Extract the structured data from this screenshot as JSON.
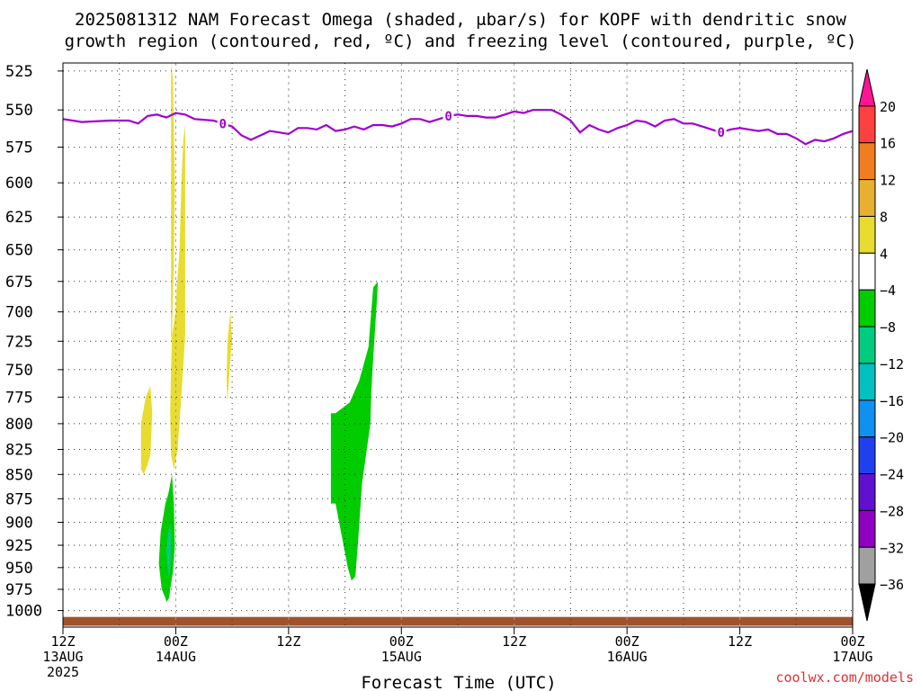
{
  "title_line1": "2025081312 NAM Forecast Omega (shaded, μbar/s) for KOPF with dendritic snow",
  "title_line2": "growth region (contoured, red, ºC) and freezing level (contoured, purple, ºC)",
  "xlabel": "Forecast Time (UTC)",
  "credit": "coolwx.com/models",
  "chart_data": {
    "type": "heatmap",
    "title": "2025081312 NAM Forecast Omega (shaded, μbar/s) for KOPF with dendritic snow growth region (contoured, red, ºC) and freezing level (contoured, purple, ºC)",
    "xlabel": "Forecast Time (UTC)",
    "ylabel": "",
    "x_unit": "hours since 2025-08-13 12Z",
    "xlim": [
      0,
      84
    ],
    "ylim": [
      1020,
      520
    ],
    "y_scale": "log-pressure",
    "grid": true,
    "x_ticks": [
      {
        "x": 0,
        "l1": "12Z",
        "l2": "13AUG",
        "l3": "2025"
      },
      {
        "x": 12,
        "l1": "00Z",
        "l2": "14AUG",
        "l3": ""
      },
      {
        "x": 24,
        "l1": "12Z",
        "l2": "",
        "l3": ""
      },
      {
        "x": 36,
        "l1": "00Z",
        "l2": "15AUG",
        "l3": ""
      },
      {
        "x": 48,
        "l1": "12Z",
        "l2": "",
        "l3": ""
      },
      {
        "x": 60,
        "l1": "00Z",
        "l2": "16AUG",
        "l3": ""
      },
      {
        "x": 72,
        "l1": "12Z",
        "l2": "",
        "l3": ""
      },
      {
        "x": 84,
        "l1": "00Z",
        "l2": "17AUG",
        "l3": ""
      }
    ],
    "y_ticks": [
      525,
      550,
      575,
      600,
      625,
      650,
      675,
      700,
      725,
      750,
      775,
      800,
      825,
      850,
      875,
      900,
      925,
      950,
      975,
      1000
    ],
    "colorbar": {
      "labels": [
        "20",
        "16",
        "12",
        "8",
        "4",
        "−4",
        "−8",
        "−12",
        "−16",
        "−20",
        "−24",
        "−28",
        "−32",
        "−36"
      ],
      "colors_top_to_bottom": [
        "#ff1493",
        "#ff4040",
        "#f07d20",
        "#e8b030",
        "#e8dc30",
        "#ffffff",
        "#00cc00",
        "#00cc80",
        "#00c0c0",
        "#1090f0",
        "#2040f0",
        "#6010d0",
        "#9000c0",
        "#a0a0a0",
        "#000000"
      ]
    },
    "series": [
      {
        "name": "freezing level",
        "color": "#a000d0",
        "label": "0",
        "points": [
          [
            0,
            556
          ],
          [
            2,
            558
          ],
          [
            5,
            557
          ],
          [
            7,
            557
          ],
          [
            8,
            559
          ],
          [
            9,
            554
          ],
          [
            10,
            553
          ],
          [
            11,
            555
          ],
          [
            12,
            552
          ],
          [
            13,
            553
          ],
          [
            14,
            556
          ],
          [
            16,
            557
          ],
          [
            17,
            559
          ],
          [
            18,
            561
          ],
          [
            19,
            567
          ],
          [
            20,
            570
          ],
          [
            21,
            567
          ],
          [
            22,
            564
          ],
          [
            23,
            565
          ],
          [
            24,
            566
          ],
          [
            25,
            562
          ],
          [
            26,
            562
          ],
          [
            27,
            563
          ],
          [
            28,
            560
          ],
          [
            29,
            564
          ],
          [
            30,
            563
          ],
          [
            31,
            561
          ],
          [
            32,
            563
          ],
          [
            33,
            560
          ],
          [
            34,
            560
          ],
          [
            35,
            561
          ],
          [
            36,
            559
          ],
          [
            37,
            556
          ],
          [
            38,
            556
          ],
          [
            39,
            558
          ],
          [
            40,
            556
          ],
          [
            41,
            554
          ],
          [
            42,
            553
          ],
          [
            43,
            554
          ],
          [
            44,
            554
          ],
          [
            45,
            555
          ],
          [
            46,
            555
          ],
          [
            47,
            553
          ],
          [
            48,
            551
          ],
          [
            49,
            552
          ],
          [
            50,
            550
          ],
          [
            52,
            550
          ],
          [
            53,
            553
          ],
          [
            54,
            557
          ],
          [
            55,
            565
          ],
          [
            56,
            560
          ],
          [
            57,
            563
          ],
          [
            58,
            565
          ],
          [
            59,
            562
          ],
          [
            60,
            560
          ],
          [
            61,
            557
          ],
          [
            62,
            558
          ],
          [
            63,
            561
          ],
          [
            64,
            557
          ],
          [
            65,
            556
          ],
          [
            66,
            559
          ],
          [
            67,
            559
          ],
          [
            68,
            561
          ],
          [
            69,
            563
          ],
          [
            70,
            565
          ],
          [
            71,
            563
          ],
          [
            72,
            562
          ],
          [
            73,
            563
          ],
          [
            74,
            564
          ],
          [
            75,
            563
          ],
          [
            76,
            566
          ],
          [
            77,
            566
          ],
          [
            78,
            569
          ],
          [
            79,
            573
          ],
          [
            80,
            570
          ],
          [
            81,
            571
          ],
          [
            82,
            569
          ],
          [
            83,
            566
          ],
          [
            84,
            564
          ]
        ],
        "labels_at_x": [
          17,
          41,
          70
        ]
      }
    ],
    "omega_regions": [
      {
        "bin": "4 to 8",
        "color": "#e8dc30",
        "t": [
          11.5,
          12.0,
          12.1,
          12.4,
          12.6,
          12.8,
          13.0,
          13.0,
          12.7,
          12.4,
          12.2,
          11.8,
          11.5,
          11.4,
          11.5,
          11.8,
          11.9,
          11.7,
          11.5
        ],
        "p": [
          725,
          700,
          680,
          650,
          600,
          570,
          560,
          720,
          760,
          800,
          825,
          845,
          830,
          790,
          750,
          660,
          600,
          530,
          520
        ]
      },
      {
        "bin": "4 to 8",
        "color": "#e8dc30",
        "t": [
          8.3,
          8.8,
          9.3,
          9.5,
          9.3,
          9.0,
          8.6,
          8.3,
          8.3
        ],
        "p": [
          800,
          775,
          765,
          790,
          830,
          840,
          850,
          845,
          800
        ]
      },
      {
        "bin": "4 to 8",
        "color": "#e8dc30",
        "t": [
          17.5,
          17.8,
          18.0,
          17.8,
          17.5,
          17.4,
          17.5
        ],
        "p": [
          780,
          740,
          725,
          700,
          725,
          760,
          780
        ]
      },
      {
        "bin": "-4 to -8",
        "color": "#00cc00",
        "t": [
          10.5,
          10.2,
          10.4,
          10.9,
          11.2,
          11.4,
          11.6,
          11.8,
          11.9,
          11.7,
          11.4,
          11.3,
          11.0,
          10.9,
          10.5
        ],
        "p": [
          975,
          945,
          910,
          880,
          870,
          860,
          850,
          880,
          925,
          955,
          975,
          985,
          990,
          985,
          975
        ]
      },
      {
        "bin": "-4 to -8",
        "color": "#00cc00",
        "t": [
          28.5,
          29.0,
          30.5,
          31.5,
          32.5,
          33.0,
          33.5,
          33.4,
          33.0,
          32.8,
          32.7,
          31.8,
          31.4,
          31.1,
          30.7,
          30.3,
          29.0,
          28.5,
          28.5
        ],
        "p": [
          790,
          790,
          780,
          760,
          730,
          680,
          675,
          690,
          740,
          770,
          800,
          860,
          920,
          960,
          965,
          950,
          880,
          880,
          790
        ]
      },
      {
        "bin": "-8 to -12",
        "color": "#00cc80",
        "t": [
          11.0,
          11.2,
          11.4,
          11.5,
          11.4,
          11.2,
          11.0
        ],
        "p": [
          930,
          910,
          900,
          925,
          955,
          960,
          930
        ]
      }
    ],
    "terrain": {
      "color": "#a0522d",
      "p": [
        1012,
        1014
      ]
    }
  }
}
